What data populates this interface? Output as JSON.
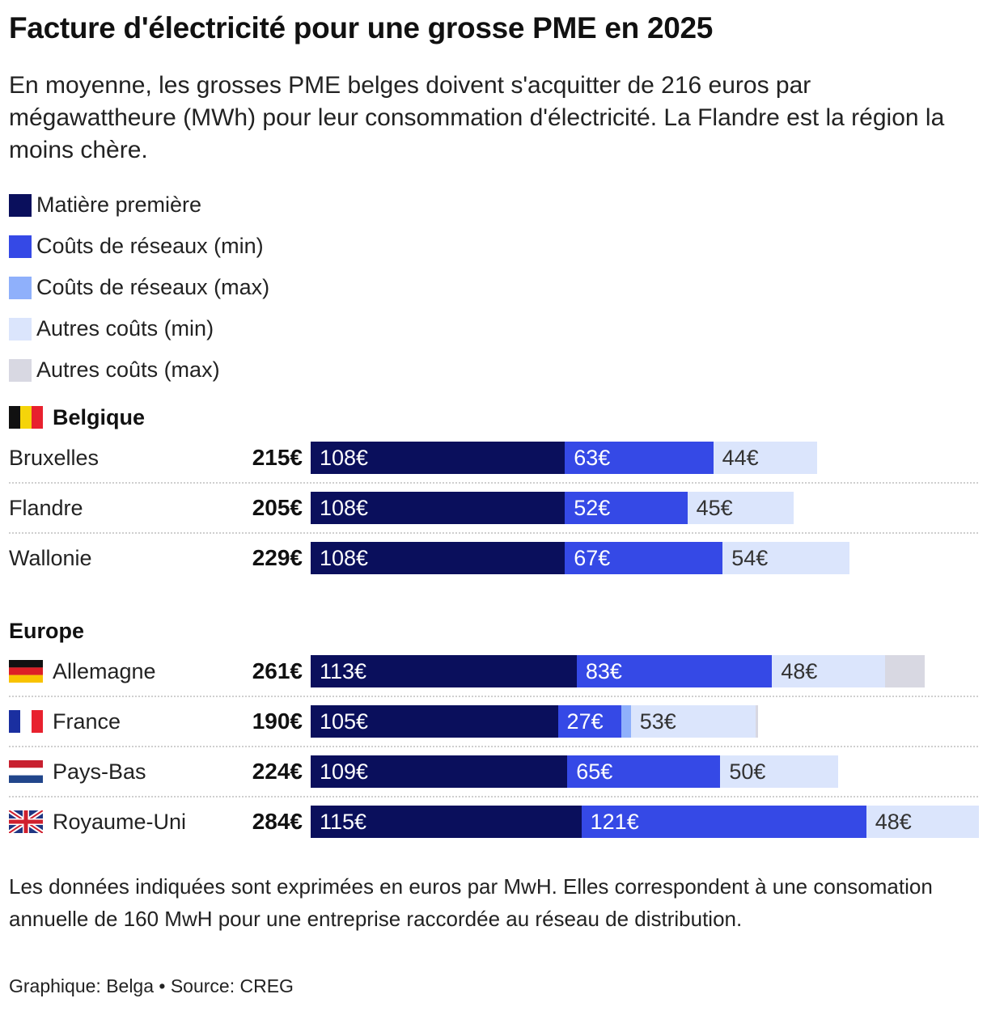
{
  "title": "Facture d'électricité pour une grosse PME en 2025",
  "subtitle": "En moyenne, les grosses PME belges doivent s'acquitter de 216 euros par mégawattheure (MWh) pour leur consommation d'électricité. La Flandre est la région la moins chère.",
  "note": "Les données indiquées sont exprimées en euros par MwH. Elles correspondent à une consomation annuelle de 160 MwH pour une entreprise raccordée au réseau de distribution.",
  "source": "Graphique: Belga • Source: CREG",
  "colors": {
    "matiere": "#0a0f5c",
    "reseaux_min": "#3549e6",
    "reseaux_max": "#8fb0fb",
    "autres_min": "#dbe5fc",
    "autres_max": "#d8d8e2"
  },
  "legend": [
    {
      "label": "Matière première",
      "color": "#0a0f5c"
    },
    {
      "label": "Coûts de réseaux (min)",
      "color": "#3549e6"
    },
    {
      "label": "Coûts de réseaux (max)",
      "color": "#8fb0fb"
    },
    {
      "label": "Autres coûts (min)",
      "color": "#dbe5fc"
    },
    {
      "label": "Autres coûts (max)",
      "color": "#d8d8e2"
    }
  ],
  "chart_data": {
    "type": "bar",
    "orientation": "horizontal",
    "stacked": true,
    "unit": "€",
    "groups": [
      {
        "name": "Belgique",
        "flag": "be",
        "rows": [
          {
            "name": "Bruxelles",
            "flag": "",
            "total": "215€",
            "segments": [
              {
                "series": "Matière première",
                "value": 108,
                "label": "108€"
              },
              {
                "series": "Coûts de réseaux (min)",
                "value": 63,
                "label": "63€"
              },
              {
                "series": "Coûts de réseaux (max)",
                "value": 0,
                "label": ""
              },
              {
                "series": "Autres coûts (min)",
                "value": 44,
                "label": "44€"
              },
              {
                "series": "Autres coûts (max)",
                "value": 0,
                "label": ""
              }
            ]
          },
          {
            "name": "Flandre",
            "flag": "",
            "total": "205€",
            "segments": [
              {
                "series": "Matière première",
                "value": 108,
                "label": "108€"
              },
              {
                "series": "Coûts de réseaux (min)",
                "value": 52,
                "label": "52€"
              },
              {
                "series": "Coûts de réseaux (max)",
                "value": 0,
                "label": ""
              },
              {
                "series": "Autres coûts (min)",
                "value": 45,
                "label": "45€"
              },
              {
                "series": "Autres coûts (max)",
                "value": 0,
                "label": ""
              }
            ]
          },
          {
            "name": "Wallonie",
            "flag": "",
            "total": "229€",
            "segments": [
              {
                "series": "Matière première",
                "value": 108,
                "label": "108€"
              },
              {
                "series": "Coûts de réseaux (min)",
                "value": 67,
                "label": "67€"
              },
              {
                "series": "Coûts de réseaux (max)",
                "value": 0,
                "label": ""
              },
              {
                "series": "Autres coûts (min)",
                "value": 54,
                "label": "54€"
              },
              {
                "series": "Autres coûts (max)",
                "value": 0,
                "label": ""
              }
            ]
          }
        ]
      },
      {
        "name": "Europe",
        "flag": "",
        "rows": [
          {
            "name": "Allemagne",
            "flag": "de",
            "total": "261€",
            "segments": [
              {
                "series": "Matière première",
                "value": 113,
                "label": "113€"
              },
              {
                "series": "Coûts de réseaux (min)",
                "value": 83,
                "label": "83€"
              },
              {
                "series": "Coûts de réseaux (max)",
                "value": 0,
                "label": ""
              },
              {
                "series": "Autres coûts (min)",
                "value": 48,
                "label": "48€"
              },
              {
                "series": "Autres coûts (max)",
                "value": 17,
                "label": ""
              }
            ]
          },
          {
            "name": "France",
            "flag": "fr",
            "total": "190€",
            "segments": [
              {
                "series": "Matière première",
                "value": 105,
                "label": "105€"
              },
              {
                "series": "Coûts de réseaux (min)",
                "value": 27,
                "label": "27€"
              },
              {
                "series": "Coûts de réseaux (max)",
                "value": 4,
                "label": ""
              },
              {
                "series": "Autres coûts (min)",
                "value": 53,
                "label": "53€"
              },
              {
                "series": "Autres coûts (max)",
                "value": 1,
                "label": ""
              }
            ]
          },
          {
            "name": "Pays-Bas",
            "flag": "nl",
            "total": "224€",
            "segments": [
              {
                "series": "Matière première",
                "value": 109,
                "label": "109€"
              },
              {
                "series": "Coûts de réseaux (min)",
                "value": 65,
                "label": "65€"
              },
              {
                "series": "Coûts de réseaux (max)",
                "value": 0,
                "label": ""
              },
              {
                "series": "Autres coûts (min)",
                "value": 50,
                "label": "50€"
              },
              {
                "series": "Autres coûts (max)",
                "value": 0,
                "label": ""
              }
            ]
          },
          {
            "name": "Royaume-Uni",
            "flag": "gb",
            "total": "284€",
            "segments": [
              {
                "series": "Matière première",
                "value": 115,
                "label": "115€"
              },
              {
                "series": "Coûts de réseaux (min)",
                "value": 121,
                "label": "121€"
              },
              {
                "series": "Coûts de réseaux (max)",
                "value": 0,
                "label": ""
              },
              {
                "series": "Autres coûts (min)",
                "value": 48,
                "label": "48€"
              },
              {
                "series": "Autres coûts (max)",
                "value": 0,
                "label": ""
              }
            ]
          }
        ]
      }
    ]
  }
}
